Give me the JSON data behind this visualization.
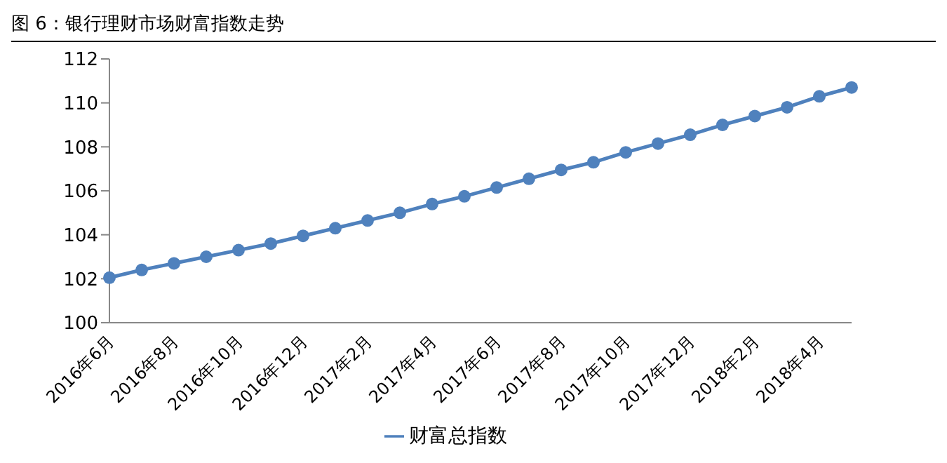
{
  "chart_data": {
    "type": "line",
    "title": "图 6：银行理财市场财富指数走势",
    "categories": [
      "2016年6月",
      null,
      "2016年8月",
      null,
      "2016年10月",
      null,
      "2016年12月",
      null,
      "2017年2月",
      null,
      "2017年4月",
      null,
      "2017年6月",
      null,
      "2017年8月",
      null,
      "2017年10月",
      null,
      "2017年12月",
      null,
      "2018年2月",
      null,
      "2018年4月",
      null
    ],
    "series": [
      {
        "name": "财富总指数",
        "color": "#4f81bd",
        "values": [
          102.05,
          102.4,
          102.7,
          103.0,
          103.3,
          103.6,
          103.95,
          104.3,
          104.65,
          105.0,
          105.4,
          105.75,
          106.15,
          106.55,
          106.95,
          107.3,
          107.75,
          108.15,
          108.55,
          109.0,
          109.4,
          109.8,
          110.3,
          110.7
        ]
      }
    ],
    "ylim": [
      100,
      112
    ],
    "yticks": [
      100,
      102,
      104,
      106,
      108,
      110,
      112
    ],
    "grid": false,
    "legend": "bottom",
    "marker": "circle",
    "line_style": "solid"
  }
}
